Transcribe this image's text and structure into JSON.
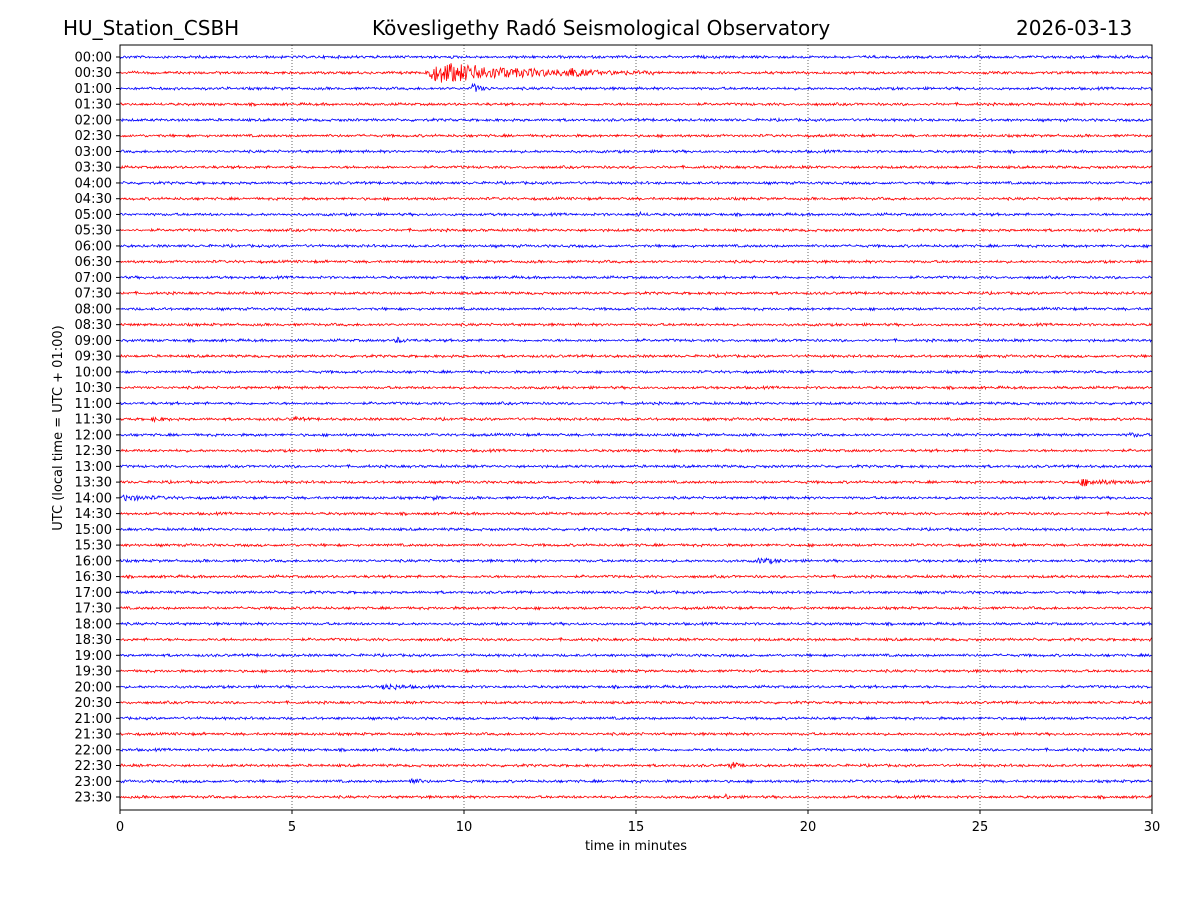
{
  "header": {
    "station": "HU_Station_CSBH",
    "observatory": "Kövesligethy Radó Seismological Observatory",
    "date": "2026-03-13"
  },
  "chart_data": {
    "type": "line",
    "subtype": "helicorder",
    "xlabel": "time in minutes",
    "ylabel": "UTC (local time = UTC + 01:00)",
    "xlim": [
      0,
      30
    ],
    "xticks": [
      0,
      5,
      10,
      15,
      20,
      25,
      30
    ],
    "xgrid": [
      5,
      10,
      15,
      20,
      25
    ],
    "grid": "vertical dotted",
    "colors": [
      "#0000ff",
      "#ff0000"
    ],
    "rows": [
      "00:00",
      "00:30",
      "01:00",
      "01:30",
      "02:00",
      "02:30",
      "03:00",
      "03:30",
      "04:00",
      "04:30",
      "05:00",
      "05:30",
      "06:00",
      "06:30",
      "07:00",
      "07:30",
      "08:00",
      "08:30",
      "09:00",
      "09:30",
      "10:00",
      "10:30",
      "11:00",
      "11:30",
      "12:00",
      "12:30",
      "13:00",
      "13:30",
      "14:00",
      "14:30",
      "15:00",
      "15:30",
      "16:00",
      "16:30",
      "17:00",
      "17:30",
      "18:00",
      "18:30",
      "19:00",
      "19:30",
      "20:00",
      "20:30",
      "21:00",
      "21:30",
      "22:00",
      "22:30",
      "23:00",
      "23:30"
    ],
    "noise_level": 0.07,
    "events": [
      {
        "row": "00:30",
        "start": 8.8,
        "end": 15.5,
        "amplitude": 0.8
      },
      {
        "row": "00:30",
        "start": 12.9,
        "end": 13.8,
        "amplitude": 0.35
      },
      {
        "row": "01:00",
        "start": 10.2,
        "end": 10.8,
        "amplitude": 0.4
      },
      {
        "row": "05:00",
        "start": 15.0,
        "end": 15.5,
        "amplitude": 0.15
      },
      {
        "row": "09:00",
        "start": 8.0,
        "end": 8.6,
        "amplitude": 0.25
      },
      {
        "row": "11:30",
        "start": 0.9,
        "end": 1.7,
        "amplitude": 0.15
      },
      {
        "row": "11:30",
        "start": 5.0,
        "end": 5.6,
        "amplitude": 0.15
      },
      {
        "row": "12:00",
        "start": 29.3,
        "end": 30,
        "amplitude": 0.15
      },
      {
        "row": "13:30",
        "start": 27.8,
        "end": 30,
        "amplitude": 0.25
      },
      {
        "row": "14:00",
        "start": 0,
        "end": 1.9,
        "amplitude": 0.2
      },
      {
        "row": "14:00",
        "start": 9.1,
        "end": 9.4,
        "amplitude": 0.2
      },
      {
        "row": "16:00",
        "start": 18.5,
        "end": 19.8,
        "amplitude": 0.2
      },
      {
        "row": "20:00",
        "start": 7.6,
        "end": 8.8,
        "amplitude": 0.25
      },
      {
        "row": "22:30",
        "start": 17.7,
        "end": 18.2,
        "amplitude": 0.35
      },
      {
        "row": "23:00",
        "start": 8.4,
        "end": 9.0,
        "amplitude": 0.3
      },
      {
        "row": "23:30",
        "start": 17.6,
        "end": 17.8,
        "amplitude": 0.3
      }
    ]
  }
}
